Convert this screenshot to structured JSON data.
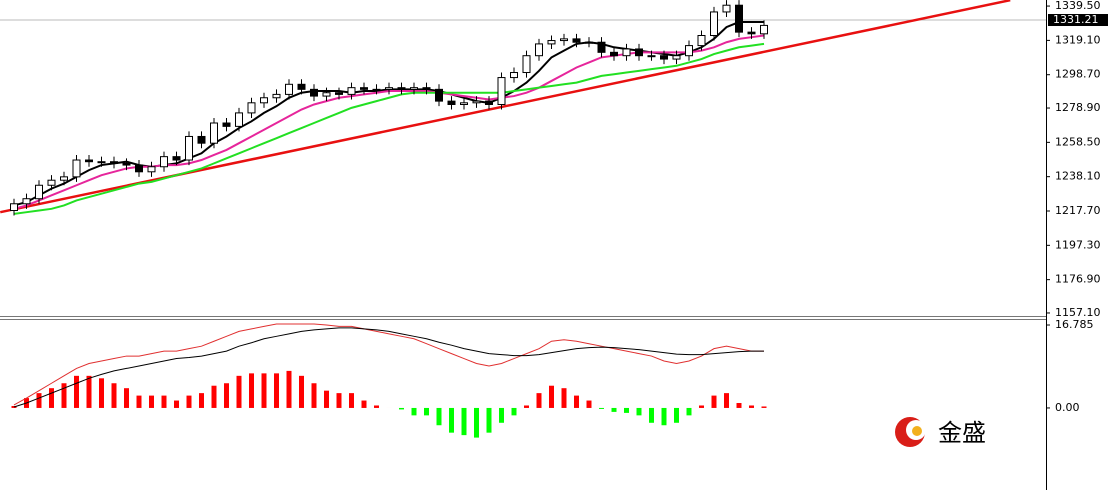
{
  "chart_data": [
    {
      "type": "candlestick",
      "open": [
        1218,
        1222,
        1225,
        1233,
        1236,
        1238,
        1248,
        1247,
        1247,
        1246,
        1245,
        1241,
        1244,
        1250,
        1248,
        1262,
        1258,
        1270,
        1268,
        1276,
        1282,
        1285,
        1287,
        1293,
        1290,
        1286,
        1288,
        1287,
        1291,
        1290,
        1290,
        1291,
        1290,
        1291,
        1290,
        1283,
        1281,
        1282,
        1283,
        1281,
        1297,
        1300,
        1310,
        1317,
        1319,
        1320,
        1318,
        1318,
        1312,
        1310,
        1314,
        1310,
        1310,
        1308,
        1310,
        1316,
        1322,
        1336,
        1340,
        1324,
        1323
      ],
      "high": [
        1225,
        1228,
        1236,
        1239,
        1241,
        1251,
        1251,
        1250,
        1250,
        1249,
        1248,
        1247,
        1253,
        1253,
        1265,
        1265,
        1273,
        1273,
        1279,
        1285,
        1288,
        1290,
        1296,
        1296,
        1293,
        1291,
        1291,
        1294,
        1294,
        1293,
        1294,
        1294,
        1294,
        1294,
        1293,
        1286,
        1285,
        1286,
        1286,
        1300,
        1303,
        1313,
        1320,
        1322,
        1323,
        1323,
        1321,
        1321,
        1315,
        1317,
        1317,
        1313,
        1313,
        1313,
        1319,
        1325,
        1339,
        1343,
        1343,
        1327,
        1331
      ],
      "low": [
        1215,
        1219,
        1222,
        1230,
        1233,
        1235,
        1244,
        1244,
        1243,
        1242,
        1238,
        1238,
        1241,
        1245,
        1245,
        1255,
        1255,
        1265,
        1265,
        1273,
        1279,
        1282,
        1284,
        1287,
        1283,
        1283,
        1284,
        1284,
        1287,
        1287,
        1287,
        1287,
        1287,
        1287,
        1280,
        1278,
        1278,
        1279,
        1278,
        1278,
        1294,
        1297,
        1307,
        1314,
        1316,
        1315,
        1315,
        1309,
        1307,
        1307,
        1307,
        1307,
        1305,
        1305,
        1307,
        1313,
        1319,
        1333,
        1321,
        1320,
        1320
      ],
      "close": [
        1222,
        1225,
        1233,
        1236,
        1238,
        1248,
        1247,
        1247,
        1246,
        1245,
        1241,
        1244,
        1250,
        1248,
        1262,
        1258,
        1270,
        1268,
        1276,
        1282,
        1285,
        1287,
        1293,
        1290,
        1286,
        1288,
        1287,
        1291,
        1290,
        1290,
        1291,
        1290,
        1291,
        1290,
        1283,
        1281,
        1282,
        1283,
        1281,
        1297,
        1300,
        1310,
        1317,
        1319,
        1320,
        1318,
        1318,
        1312,
        1310,
        1314,
        1310,
        1310,
        1308,
        1310,
        1316,
        1322,
        1336,
        1340,
        1324,
        1323,
        1328
      ],
      "up_color": "#ffffff",
      "down_color": "#000000",
      "lines": [
        {
          "color": "#000000",
          "values": [
            1221,
            1223,
            1227,
            1231,
            1234,
            1238,
            1242,
            1245,
            1246,
            1247,
            1245,
            1244,
            1245,
            1246,
            1249,
            1252,
            1258,
            1262,
            1267,
            1271,
            1276,
            1280,
            1285,
            1288,
            1289,
            1289,
            1289,
            1288,
            1289,
            1289,
            1290,
            1290,
            1290,
            1290,
            1289,
            1287,
            1285,
            1283,
            1282,
            1285,
            1289,
            1294,
            1301,
            1309,
            1313,
            1317,
            1318,
            1317,
            1315,
            1314,
            1313,
            1312,
            1311,
            1310,
            1312,
            1315,
            1320,
            1327,
            1330,
            1330,
            1330
          ]
        },
        {
          "color": "#e6259b",
          "values": [
            1219,
            1221,
            1224,
            1227,
            1230,
            1233,
            1236,
            1239,
            1241,
            1243,
            1244,
            1244,
            1245,
            1245,
            1246,
            1248,
            1251,
            1254,
            1258,
            1262,
            1266,
            1270,
            1274,
            1278,
            1281,
            1283,
            1285,
            1286,
            1287,
            1288,
            1289,
            1289,
            1289,
            1289,
            1288,
            1287,
            1286,
            1285,
            1284,
            1285,
            1286,
            1288,
            1291,
            1295,
            1299,
            1303,
            1306,
            1309,
            1310,
            1311,
            1312,
            1312,
            1312,
            1312,
            1312,
            1313,
            1315,
            1318,
            1320,
            1321,
            1322
          ]
        },
        {
          "color": "#22e022",
          "values": [
            1216,
            1217,
            1218,
            1219,
            1221,
            1224,
            1226,
            1228,
            1230,
            1232,
            1234,
            1235,
            1237,
            1239,
            1241,
            1243,
            1246,
            1249,
            1252,
            1255,
            1258,
            1261,
            1264,
            1267,
            1270,
            1273,
            1276,
            1279,
            1281,
            1283,
            1285,
            1287,
            1288,
            1288,
            1288,
            1288,
            1288,
            1288,
            1288,
            1288,
            1289,
            1290,
            1291,
            1292,
            1293,
            1294,
            1296,
            1298,
            1299,
            1300,
            1301,
            1302,
            1303,
            1304,
            1306,
            1308,
            1311,
            1313,
            1315,
            1316,
            1317
          ]
        }
      ],
      "trendline": {
        "color": "#e81010",
        "x": [
          -1.1,
          79.7
        ],
        "values": [
          1217,
          1343
        ]
      },
      "last_price": 1331.21,
      "ylim": [
        1155.3,
        1343.1
      ],
      "yticks": [
        {
          "value": 1339.5,
          "label": "1339.50"
        },
        {
          "value": 1319.1,
          "label": "1319.10"
        },
        {
          "value": 1298.7,
          "label": "1298.70"
        },
        {
          "value": 1278.9,
          "label": "1278.90"
        },
        {
          "value": 1258.5,
          "label": "1258.50"
        },
        {
          "value": 1238.1,
          "label": "1238.10"
        },
        {
          "value": 1217.7,
          "label": "1217.70"
        },
        {
          "value": 1197.3,
          "label": "1197.30"
        },
        {
          "value": 1176.9,
          "label": "1176.90"
        },
        {
          "value": 1157.1,
          "label": "1157.10"
        }
      ]
    },
    {
      "type": "macd",
      "histogram": [
        0.4,
        2.0,
        3.0,
        4.0,
        5.0,
        6.5,
        6.5,
        6.0,
        5.0,
        4.0,
        2.5,
        2.5,
        2.5,
        1.5,
        2.5,
        3.0,
        4.5,
        5.0,
        6.5,
        7.0,
        7.0,
        7.0,
        7.5,
        6.5,
        5.0,
        3.5,
        3.0,
        3.0,
        1.5,
        0.5,
        0,
        -0.3,
        -1.5,
        -1.5,
        -3.5,
        -5.0,
        -5.5,
        -6.0,
        -5.0,
        -3.0,
        -1.5,
        0.5,
        3.0,
        4.5,
        4.0,
        2.5,
        1.5,
        -0.2,
        -0.8,
        -1.0,
        -1.5,
        -3.0,
        -3.5,
        -3.0,
        -1.5,
        0.5,
        2.5,
        3.0,
        1.0,
        0.5,
        0.3
      ],
      "positive_color": "#ff0000",
      "negative_color": "#00ff00",
      "lines": [
        {
          "color": "#e03030",
          "values": [
            0.6,
            2,
            3.5,
            5,
            6.5,
            8,
            9,
            9.5,
            10,
            10.5,
            10.5,
            11,
            11.5,
            11.5,
            12,
            12.5,
            13.5,
            14.5,
            15.5,
            16,
            16.5,
            17,
            17,
            17,
            17,
            16.8,
            16.5,
            16.5,
            16,
            15.5,
            15,
            14.5,
            14,
            13,
            12,
            11,
            10,
            9,
            8.5,
            9,
            10,
            11,
            12,
            13.5,
            13.8,
            13.5,
            13,
            12.5,
            12,
            11.5,
            11,
            10.5,
            9.5,
            9,
            9.5,
            10.5,
            12,
            12.5,
            12,
            11.5,
            11.5
          ]
        },
        {
          "color": "#000000",
          "values": [
            0.2,
            1,
            2,
            3,
            4,
            5,
            6,
            6.8,
            7.5,
            8,
            8.5,
            9,
            9.5,
            10,
            10.2,
            10.5,
            11,
            11.5,
            12.5,
            13.2,
            14,
            14.5,
            15,
            15.5,
            15.8,
            16,
            16.2,
            16.2,
            16,
            15.8,
            15.5,
            15,
            14.5,
            14,
            13.3,
            12.7,
            12,
            11.5,
            11,
            10.8,
            10.6,
            10.6,
            10.8,
            11.2,
            11.6,
            12,
            12.2,
            12.3,
            12.2,
            12,
            11.8,
            11.5,
            11.2,
            10.9,
            10.8,
            10.8,
            11,
            11.2,
            11.4,
            11.5,
            11.5
          ]
        }
      ],
      "ylim": [
        -16.2,
        17.8
      ],
      "yticks": [
        16.785,
        {
          "value": 0,
          "label": "0.00"
        }
      ]
    }
  ],
  "logo": {
    "text": "金盛"
  }
}
